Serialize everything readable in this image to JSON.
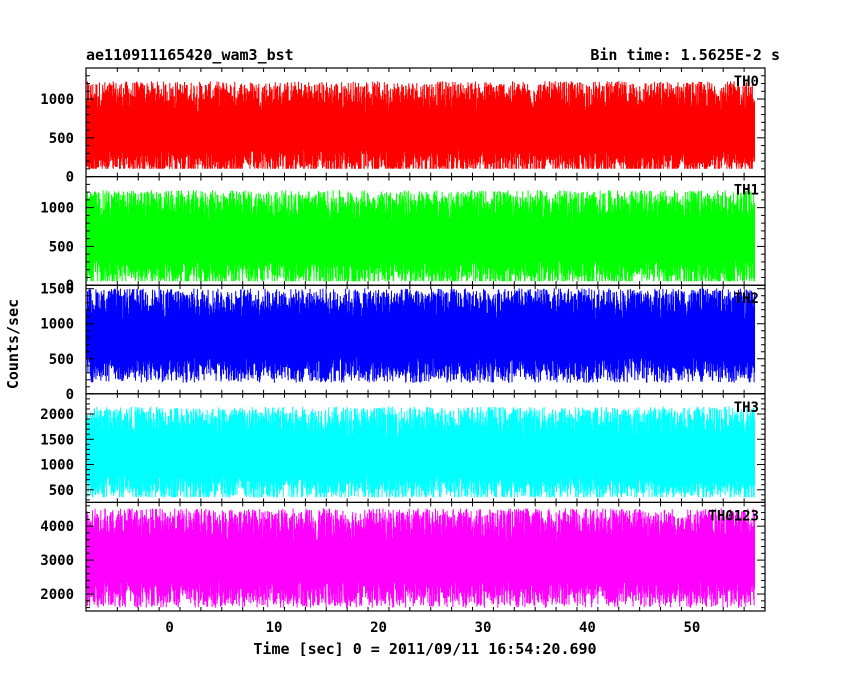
{
  "chart_data": {
    "type": "line",
    "title_left": "ae110911165420_wam3_bst",
    "title_right": "Bin time: 1.5625E-2 s",
    "xlabel": "Time [sec] 0 = 2011/09/11 16:54:20.690",
    "ylabel": "Counts/sec",
    "xlim": [
      -8,
      57
    ],
    "x_ticks": [
      0,
      10,
      20,
      30,
      40,
      50
    ],
    "x_data_range": [
      -7.9,
      56
    ],
    "grid": false,
    "panels": [
      {
        "name": "TH0",
        "color": "#ff0000",
        "ylim": [
          0,
          1400
        ],
        "y_ticks": [
          0,
          500,
          1000
        ],
        "series_range": [
          100,
          1400
        ],
        "mean": 580
      },
      {
        "name": "TH1",
        "color": "#00ff00",
        "ylim": [
          0,
          1400
        ],
        "y_ticks": [
          0,
          500,
          1000
        ],
        "series_range": [
          50,
          1380
        ],
        "mean": 560
      },
      {
        "name": "TH2",
        "color": "#0000ff",
        "ylim": [
          0,
          1550
        ],
        "y_ticks": [
          0,
          500,
          1000,
          1500
        ],
        "series_range": [
          100,
          1550
        ],
        "mean": 780
      },
      {
        "name": "TH3",
        "color": "#00ffff",
        "ylim": [
          250,
          2400
        ],
        "y_ticks": [
          500,
          1000,
          1500,
          2000
        ],
        "series_range": [
          350,
          2350
        ],
        "mean": 1150
      },
      {
        "name": "TH0123",
        "color": "#ff00ff",
        "ylim": [
          1500,
          4700
        ],
        "y_ticks": [
          2000,
          3000,
          4000
        ],
        "series_range": [
          1550,
          4700
        ],
        "mean": 2950
      }
    ]
  }
}
